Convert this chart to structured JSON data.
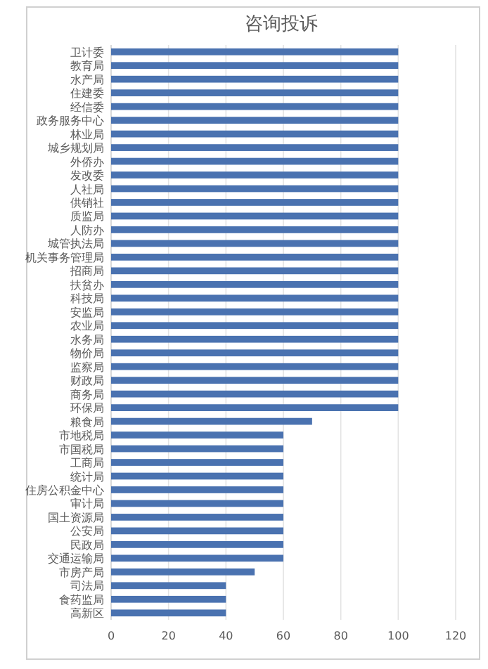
{
  "chart_data": {
    "type": "bar",
    "orientation": "horizontal",
    "title": "咨询投诉",
    "categories": [
      "卫计委",
      "教育局",
      "水产局",
      "住建委",
      "经信委",
      "政务服务中心",
      "林业局",
      "城乡规划局",
      "外侨办",
      "发改委",
      "人社局",
      "供销社",
      "质监局",
      "人防办",
      "城管执法局",
      "机关事务管理局",
      "招商局",
      "扶贫办",
      "科技局",
      "安监局",
      "农业局",
      "水务局",
      "物价局",
      "监察局",
      "财政局",
      "商务局",
      "环保局",
      "粮食局",
      "市地税局",
      "市国税局",
      "工商局",
      "统计局",
      "住房公积金中心",
      "审计局",
      "国土资源局",
      "公安局",
      "民政局",
      "交通运输局",
      "市房产局",
      "司法局",
      "食药监局",
      "高新区"
    ],
    "values": [
      100,
      100,
      100,
      100,
      100,
      100,
      100,
      100,
      100,
      100,
      100,
      100,
      100,
      100,
      100,
      100,
      100,
      100,
      100,
      100,
      100,
      100,
      100,
      100,
      100,
      100,
      100,
      70,
      60,
      60,
      60,
      60,
      60,
      60,
      60,
      60,
      60,
      60,
      50,
      40,
      40,
      40
    ],
    "color": "#4a72b0",
    "xlim": [
      0,
      120
    ],
    "xticks": [
      0,
      20,
      40,
      60,
      80,
      100,
      120
    ],
    "grid": "x"
  }
}
